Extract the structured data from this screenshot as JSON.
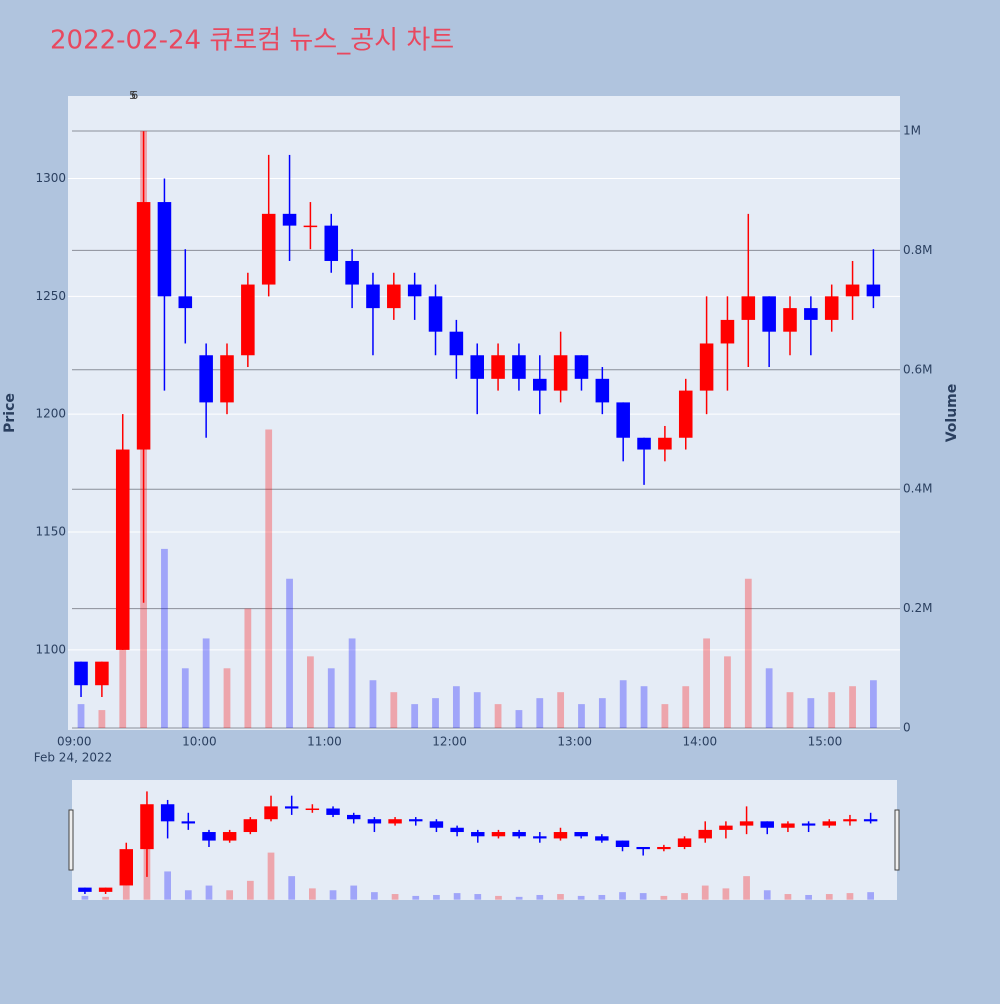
{
  "chart_data": {
    "type": "candlestick",
    "title": "2022-02-24 큐로컴 뉴스_공시 차트",
    "y_title": "Price",
    "y2_title": "Volume",
    "date_label": "Feb 24, 2022",
    "x": [
      "09:00",
      "09:10",
      "09:20",
      "09:30",
      "09:40",
      "09:50",
      "10:00",
      "10:10",
      "10:20",
      "10:30",
      "10:40",
      "10:50",
      "11:00",
      "11:10",
      "11:20",
      "11:30",
      "11:40",
      "11:50",
      "12:00",
      "12:10",
      "12:20",
      "12:30",
      "12:40",
      "12:50",
      "13:00",
      "13:10",
      "13:20",
      "13:30",
      "13:40",
      "13:50",
      "14:00",
      "14:10",
      "14:20",
      "14:30",
      "14:40",
      "14:50",
      "15:00",
      "15:10",
      "15:20"
    ],
    "open": [
      1095,
      1085,
      1100,
      1185,
      1290,
      1250,
      1225,
      1205,
      1225,
      1255,
      1285,
      1280,
      1280,
      1265,
      1255,
      1245,
      1255,
      1250,
      1235,
      1225,
      1215,
      1225,
      1215,
      1210,
      1225,
      1215,
      1205,
      1190,
      1185,
      1190,
      1210,
      1230,
      1240,
      1250,
      1235,
      1245,
      1240,
      1250,
      1255
    ],
    "high": [
      1095,
      1095,
      1200,
      1320,
      1300,
      1270,
      1230,
      1230,
      1260,
      1310,
      1310,
      1290,
      1285,
      1270,
      1260,
      1260,
      1260,
      1255,
      1240,
      1230,
      1230,
      1230,
      1225,
      1235,
      1225,
      1220,
      1205,
      1190,
      1195,
      1215,
      1250,
      1250,
      1285,
      1250,
      1250,
      1250,
      1255,
      1265,
      1270
    ],
    "low": [
      1080,
      1080,
      1100,
      1120,
      1210,
      1230,
      1190,
      1200,
      1220,
      1250,
      1265,
      1270,
      1260,
      1245,
      1225,
      1240,
      1240,
      1225,
      1215,
      1200,
      1210,
      1210,
      1200,
      1205,
      1210,
      1200,
      1180,
      1170,
      1180,
      1185,
      1200,
      1210,
      1220,
      1220,
      1225,
      1225,
      1235,
      1240,
      1245
    ],
    "close": [
      1085,
      1095,
      1185,
      1290,
      1250,
      1245,
      1205,
      1225,
      1255,
      1285,
      1280,
      1280,
      1265,
      1255,
      1245,
      1255,
      1250,
      1235,
      1225,
      1215,
      1225,
      1215,
      1210,
      1225,
      1215,
      1205,
      1190,
      1185,
      1190,
      1210,
      1230,
      1240,
      1250,
      1235,
      1245,
      1240,
      1250,
      1255,
      1250
    ],
    "volume": [
      40000,
      30000,
      150000,
      1000000,
      300000,
      100000,
      150000,
      100000,
      200000,
      500000,
      250000,
      120000,
      100000,
      150000,
      80000,
      60000,
      40000,
      50000,
      70000,
      60000,
      40000,
      30000,
      50000,
      60000,
      40000,
      50000,
      80000,
      70000,
      40000,
      70000,
      150000,
      120000,
      250000,
      100000,
      60000,
      50000,
      60000,
      70000,
      80000
    ],
    "increasing_color": "#ff0000",
    "decreasing_color": "#0000ff",
    "annotations": [
      {
        "x": "09:28",
        "text": "5"
      },
      {
        "x": "09:29",
        "text": "6"
      }
    ],
    "xlim": [
      "08:57",
      "15:36"
    ],
    "xticks": [
      "09:00",
      "10:00",
      "11:00",
      "12:00",
      "13:00",
      "14:00",
      "15:00"
    ],
    "ylim": [
      1066,
      1335
    ],
    "yticks": [
      1100,
      1150,
      1200,
      1250,
      1300
    ],
    "y2lim": [
      -3350,
      1058600
    ],
    "y2ticks": [
      0,
      {
        "value": 200000,
        "label": "0.2M"
      },
      {
        "value": 400000,
        "label": "0.4M"
      },
      {
        "value": 600000,
        "label": "0.6M"
      },
      {
        "value": 800000,
        "label": "0.8M"
      },
      {
        "value": 1000000,
        "label": "1M"
      }
    ],
    "grid": true,
    "range_slider": true
  }
}
